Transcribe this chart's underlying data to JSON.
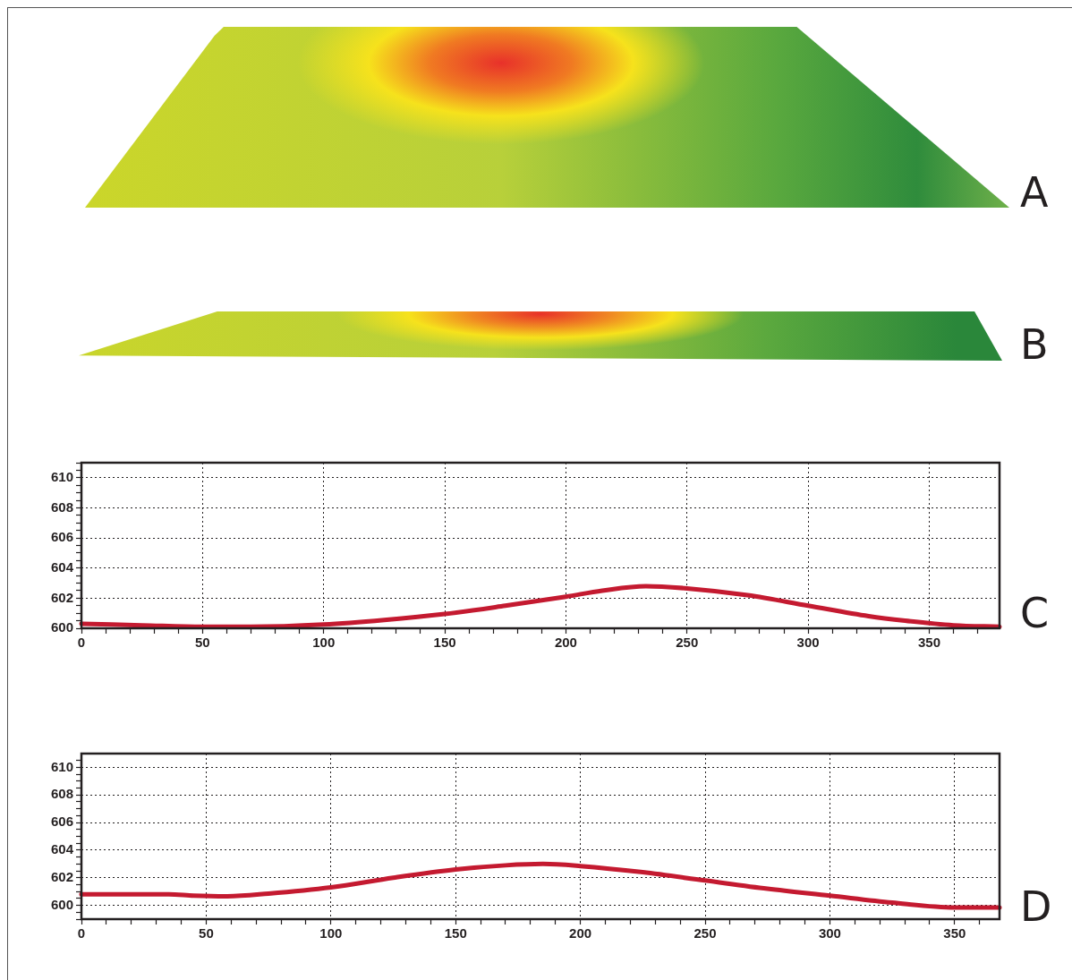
{
  "chart_data": [
    {
      "type": "other",
      "annotations": [
        "A"
      ]
    },
    {
      "type": "other",
      "annotations": [
        "B"
      ]
    },
    {
      "type": "line",
      "annotations": [
        "C"
      ],
      "color": "#c41a30",
      "grid": true,
      "x": [
        0,
        25,
        50,
        70,
        100,
        125,
        150,
        175,
        200,
        215,
        233,
        250,
        275,
        300,
        325,
        340,
        360,
        379
      ],
      "values": [
        600.3,
        600.2,
        600.1,
        600.1,
        600.25,
        600.55,
        600.95,
        601.5,
        602.1,
        602.5,
        602.8,
        602.65,
        602.2,
        601.5,
        600.8,
        600.5,
        600.2,
        600.1
      ],
      "xlim": [
        0,
        379
      ],
      "ylim": [
        600,
        611
      ],
      "xticks": [
        0,
        {
          "value": 10,
          "label": null
        },
        {
          "value": 20,
          "label": null
        },
        {
          "value": 30,
          "label": null
        },
        {
          "value": 40,
          "label": null
        },
        50,
        {
          "value": 60,
          "label": null
        },
        {
          "value": 70,
          "label": null
        },
        {
          "value": 80,
          "label": null
        },
        {
          "value": 90,
          "label": null
        },
        100,
        {
          "value": 110,
          "label": null
        },
        {
          "value": 120,
          "label": null
        },
        {
          "value": 130,
          "label": null
        },
        {
          "value": 140,
          "label": null
        },
        150,
        {
          "value": 160,
          "label": null
        },
        {
          "value": 170,
          "label": null
        },
        {
          "value": 180,
          "label": null
        },
        {
          "value": 190,
          "label": null
        },
        200,
        {
          "value": 210,
          "label": null
        },
        {
          "value": 220,
          "label": null
        },
        {
          "value": 230,
          "label": null
        },
        {
          "value": 240,
          "label": null
        },
        250,
        {
          "value": 260,
          "label": null
        },
        {
          "value": 270,
          "label": null
        },
        {
          "value": 280,
          "label": null
        },
        {
          "value": 290,
          "label": null
        },
        300,
        {
          "value": 310,
          "label": null
        },
        {
          "value": 320,
          "label": null
        },
        {
          "value": 330,
          "label": null
        },
        {
          "value": 340,
          "label": null
        },
        350,
        {
          "value": 360,
          "label": null
        },
        {
          "value": 370,
          "label": null
        }
      ],
      "yticks": [
        600,
        {
          "value": 600.5,
          "label": null
        },
        {
          "value": 601,
          "label": null
        },
        {
          "value": 601.5,
          "label": null
        },
        602,
        {
          "value": 602.5,
          "label": null
        },
        {
          "value": 603,
          "label": null
        },
        {
          "value": 603.5,
          "label": null
        },
        604,
        {
          "value": 604.5,
          "label": null
        },
        {
          "value": 605,
          "label": null
        },
        {
          "value": 605.5,
          "label": null
        },
        606,
        {
          "value": 606.5,
          "label": null
        },
        {
          "value": 607,
          "label": null
        },
        {
          "value": 607.5,
          "label": null
        },
        608,
        {
          "value": 608.5,
          "label": null
        },
        {
          "value": 609,
          "label": null
        },
        {
          "value": 609.5,
          "label": null
        },
        610,
        {
          "value": 610.5,
          "label": null
        },
        {
          "value": 611,
          "label": null
        }
      ]
    },
    {
      "type": "line",
      "annotations": [
        "D"
      ],
      "color": "#c41a30",
      "grid": true,
      "x": [
        0,
        20,
        35,
        45,
        58,
        75,
        100,
        125,
        150,
        170,
        185,
        200,
        225,
        250,
        275,
        300,
        325,
        350,
        368
      ],
      "values": [
        600.8,
        600.8,
        600.8,
        600.7,
        600.65,
        600.85,
        601.3,
        602.0,
        602.6,
        602.9,
        603.0,
        602.85,
        602.4,
        601.8,
        601.2,
        600.7,
        600.2,
        599.85,
        599.85
      ],
      "xlim": [
        0,
        368
      ],
      "ylim": [
        599,
        611
      ],
      "xticks": [
        0,
        {
          "value": 10,
          "label": null
        },
        {
          "value": 20,
          "label": null
        },
        {
          "value": 30,
          "label": null
        },
        {
          "value": 40,
          "label": null
        },
        50,
        {
          "value": 60,
          "label": null
        },
        {
          "value": 70,
          "label": null
        },
        {
          "value": 80,
          "label": null
        },
        {
          "value": 90,
          "label": null
        },
        100,
        {
          "value": 110,
          "label": null
        },
        {
          "value": 120,
          "label": null
        },
        {
          "value": 130,
          "label": null
        },
        {
          "value": 140,
          "label": null
        },
        150,
        {
          "value": 160,
          "label": null
        },
        {
          "value": 170,
          "label": null
        },
        {
          "value": 180,
          "label": null
        },
        {
          "value": 190,
          "label": null
        },
        200,
        {
          "value": 210,
          "label": null
        },
        {
          "value": 220,
          "label": null
        },
        {
          "value": 230,
          "label": null
        },
        {
          "value": 240,
          "label": null
        },
        250,
        {
          "value": 260,
          "label": null
        },
        {
          "value": 270,
          "label": null
        },
        {
          "value": 280,
          "label": null
        },
        {
          "value": 290,
          "label": null
        },
        300,
        {
          "value": 310,
          "label": null
        },
        {
          "value": 320,
          "label": null
        },
        {
          "value": 330,
          "label": null
        },
        {
          "value": 340,
          "label": null
        },
        350,
        {
          "value": 360,
          "label": null
        }
      ],
      "yticks": [
        {
          "value": 599,
          "label": null
        },
        {
          "value": 599.5,
          "label": null
        },
        600,
        {
          "value": 600.5,
          "label": null
        },
        {
          "value": 601,
          "label": null
        },
        {
          "value": 601.5,
          "label": null
        },
        602,
        {
          "value": 602.5,
          "label": null
        },
        {
          "value": 603,
          "label": null
        },
        {
          "value": 603.5,
          "label": null
        },
        604,
        {
          "value": 604.5,
          "label": null
        },
        {
          "value": 605,
          "label": null
        },
        {
          "value": 605.5,
          "label": null
        },
        606,
        {
          "value": 606.5,
          "label": null
        },
        {
          "value": 607,
          "label": null
        },
        {
          "value": 607.5,
          "label": null
        },
        608,
        {
          "value": 608.5,
          "label": null
        },
        {
          "value": 609,
          "label": null
        },
        {
          "value": 609.5,
          "label": null
        },
        610,
        {
          "value": 610.5,
          "label": null
        }
      ]
    }
  ]
}
